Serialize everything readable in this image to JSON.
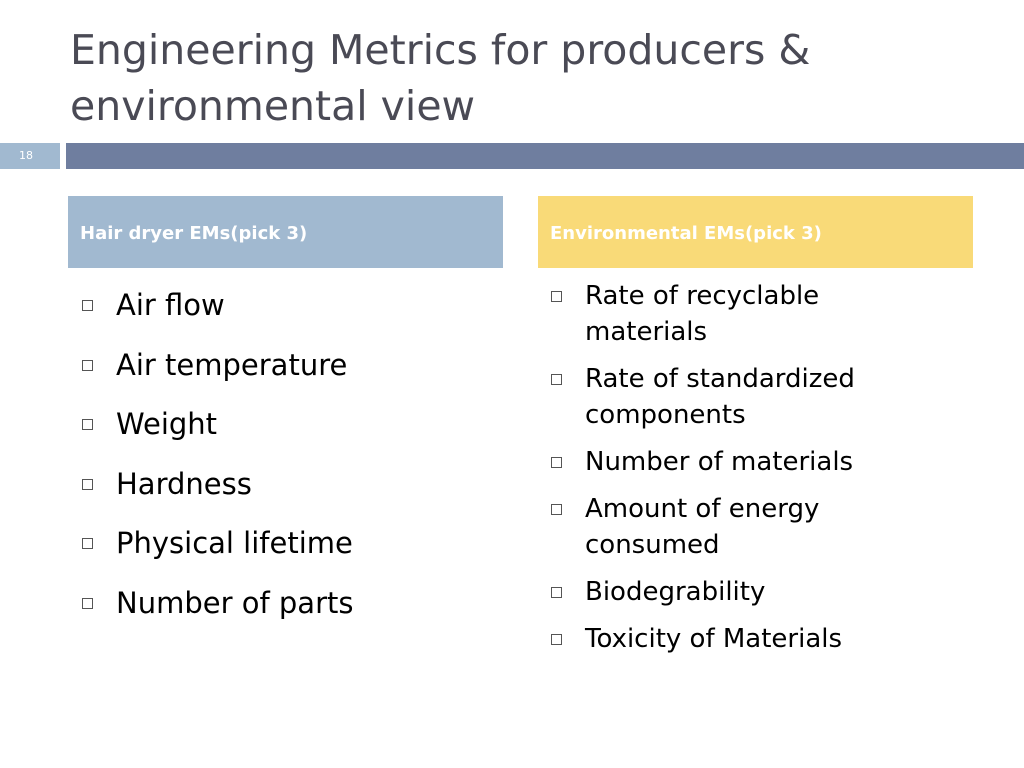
{
  "slide": {
    "title_line1": "Engineering Metrics for producers &",
    "title_line2": "environmental view",
    "slide_number": "18"
  },
  "left_column": {
    "header": "Hair dryer EMs(pick 3)",
    "items": [
      "Air flow",
      "Air temperature",
      "Weight",
      "Hardness",
      "Physical lifetime",
      "Number of parts"
    ]
  },
  "right_column": {
    "header": "Environmental EMs(pick 3)",
    "items": [
      [
        "Rate of recyclable",
        "materials"
      ],
      [
        "Rate of standardized",
        "components"
      ],
      [
        "Number of materials"
      ],
      [
        "Amount of energy",
        "consumed"
      ],
      [
        "Biodegrability"
      ],
      [
        "Toxicity of Materials"
      ]
    ]
  },
  "colors": {
    "title_text": "#4a4a55",
    "left_header_bg": "#a1b9d0",
    "right_header_bg": "#f9da78",
    "rule_bar": "#6f7e9f",
    "slide_number_bg": "#a1b9d0"
  },
  "icons": {
    "bullet": "hollow-square-bullet-icon"
  }
}
